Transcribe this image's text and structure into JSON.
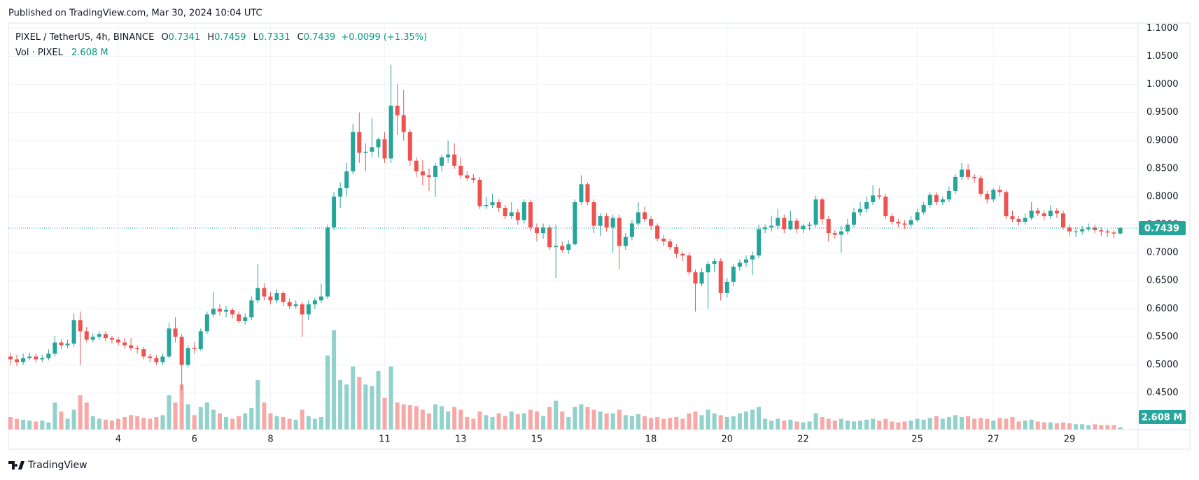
{
  "published": "Published on TradingView.com, Mar 30, 2024 10:04 UTC",
  "footer": "TradingView",
  "chart_data": {
    "type": "candlestick",
    "header": {
      "symbol": "PIXEL / TetherUS, 4h, BINANCE",
      "o": "O",
      "h": "H",
      "l": "L",
      "c": "C",
      "change": "+0.0099 (+1.35%)",
      "volume_title": "Vol · PIXEL"
    },
    "volume_label": "2.608 M",
    "up_color": "#26a69a",
    "down_color": "#ef5350",
    "grid": true,
    "ylim": [
      0.3847,
      1.1092
    ],
    "y2lim": [
      0,
      450
    ],
    "yticks": [
      {
        "value": 1.1,
        "label": "1.1000"
      },
      {
        "value": 1.05,
        "label": "1.0500"
      },
      {
        "value": 1.0,
        "label": "1.0000"
      },
      {
        "value": 0.95,
        "label": "0.9500"
      },
      {
        "value": 0.9,
        "label": "0.9000"
      },
      {
        "value": 0.85,
        "label": "0.8500"
      },
      {
        "value": 0.8,
        "label": "0.8000"
      },
      {
        "value": 0.75,
        "label": "0.7500"
      },
      {
        "value": 0.7,
        "label": "0.7000"
      },
      {
        "value": 0.65,
        "label": "0.6500"
      },
      {
        "value": 0.6,
        "label": "0.6000"
      },
      {
        "value": 0.55,
        "label": "0.5500"
      },
      {
        "value": 0.5,
        "label": "0.5000"
      },
      {
        "value": 0.45,
        "label": "0.4500"
      }
    ],
    "categories": [
      null,
      null,
      null,
      null,
      null,
      null,
      null,
      null,
      null,
      null,
      null,
      null,
      null,
      null,
      null,
      null,
      null,
      "4",
      null,
      null,
      null,
      null,
      null,
      null,
      null,
      null,
      null,
      null,
      null,
      "6",
      null,
      null,
      null,
      null,
      null,
      null,
      null,
      null,
      null,
      null,
      null,
      "8",
      null,
      null,
      null,
      null,
      null,
      null,
      null,
      null,
      null,
      null,
      null,
      null,
      null,
      null,
      null,
      null,
      null,
      "11",
      null,
      null,
      null,
      null,
      null,
      null,
      null,
      null,
      null,
      null,
      null,
      "13",
      null,
      null,
      null,
      null,
      null,
      null,
      null,
      null,
      null,
      null,
      null,
      "15",
      null,
      null,
      null,
      null,
      null,
      null,
      null,
      null,
      null,
      null,
      null,
      null,
      null,
      null,
      null,
      null,
      null,
      "18",
      null,
      null,
      null,
      null,
      null,
      null,
      null,
      null,
      null,
      null,
      null,
      "20",
      null,
      null,
      null,
      null,
      null,
      null,
      null,
      null,
      null,
      null,
      null,
      "22",
      null,
      null,
      null,
      null,
      null,
      null,
      null,
      null,
      null,
      null,
      null,
      null,
      null,
      null,
      null,
      null,
      null,
      "25",
      null,
      null,
      null,
      null,
      null,
      null,
      null,
      null,
      null,
      null,
      null,
      "27",
      null,
      null,
      null,
      null,
      null,
      null,
      null,
      null,
      null,
      null,
      null,
      "29",
      null,
      null,
      null,
      null,
      null,
      null,
      null,
      null
    ],
    "open": [
      0.515,
      0.51,
      0.505,
      0.512,
      0.515,
      0.51,
      0.512,
      0.52,
      0.54,
      0.535,
      0.538,
      0.58,
      0.56,
      0.545,
      0.55,
      0.555,
      0.548,
      0.545,
      0.54,
      0.535,
      0.53,
      0.528,
      0.515,
      0.512,
      0.505,
      0.515,
      0.565,
      0.55,
      0.5,
      0.53,
      0.528,
      0.56,
      0.59,
      0.6,
      0.595,
      0.598,
      0.59,
      0.578,
      0.585,
      0.615,
      0.637,
      0.622,
      0.615,
      0.628,
      0.612,
      0.605,
      0.608,
      0.59,
      0.608,
      0.615,
      0.622,
      0.745,
      0.8,
      0.815,
      0.845,
      0.915,
      0.878,
      0.88,
      0.888,
      0.902,
      0.868,
      0.962,
      0.945,
      0.915,
      0.864,
      0.845,
      0.838,
      0.835,
      0.855,
      0.87,
      0.875,
      0.855,
      0.838,
      0.833,
      0.83,
      0.783,
      0.785,
      0.79,
      0.78,
      0.765,
      0.772,
      0.758,
      0.79,
      0.745,
      0.735,
      0.745,
      0.71,
      0.712,
      0.705,
      0.715,
      0.79,
      0.822,
      0.79,
      0.748,
      0.765,
      0.745,
      0.762,
      0.712,
      0.728,
      0.752,
      0.772,
      0.76,
      0.748,
      0.725,
      0.72,
      0.71,
      0.698,
      0.695,
      0.665,
      0.645,
      0.665,
      0.68,
      0.685,
      0.628,
      0.648,
      0.675,
      0.682,
      0.688,
      0.695,
      0.742,
      0.745,
      0.748,
      0.762,
      0.742,
      0.757,
      0.742,
      0.748,
      0.75,
      0.795,
      0.76,
      0.735,
      0.732,
      0.738,
      0.75,
      0.772,
      0.778,
      0.79,
      0.802,
      0.8,
      0.765,
      0.755,
      0.752,
      0.75,
      0.758,
      0.772,
      0.785,
      0.803,
      0.79,
      0.795,
      0.81,
      0.835,
      0.848,
      0.835,
      0.833,
      0.805,
      0.795,
      0.812,
      0.808,
      0.765,
      0.76,
      0.755,
      0.762,
      0.775,
      0.77,
      0.765,
      0.775,
      0.77,
      0.745,
      0.738,
      0.738,
      0.742,
      0.745,
      0.74,
      0.738,
      0.736,
      0.7341
    ],
    "high": [
      0.522,
      0.518,
      0.52,
      0.522,
      0.52,
      0.518,
      0.528,
      0.552,
      0.545,
      0.545,
      0.592,
      0.595,
      0.568,
      0.556,
      0.56,
      0.56,
      0.552,
      0.55,
      0.548,
      0.548,
      0.535,
      0.532,
      0.52,
      0.518,
      0.52,
      0.575,
      0.585,
      0.555,
      0.535,
      0.54,
      0.565,
      0.595,
      0.63,
      0.608,
      0.605,
      0.602,
      0.595,
      0.592,
      0.622,
      0.68,
      0.645,
      0.63,
      0.635,
      0.632,
      0.618,
      0.615,
      0.612,
      0.615,
      0.62,
      0.645,
      0.75,
      0.808,
      0.825,
      0.86,
      0.93,
      0.95,
      0.895,
      0.94,
      0.905,
      0.915,
      1.035,
      1.0,
      0.99,
      0.92,
      0.87,
      0.865,
      0.85,
      0.86,
      0.875,
      0.9,
      0.895,
      0.87,
      0.845,
      0.84,
      0.835,
      0.8,
      0.805,
      0.795,
      0.785,
      0.79,
      0.778,
      0.795,
      0.795,
      0.752,
      0.752,
      0.75,
      0.75,
      0.72,
      0.722,
      0.795,
      0.838,
      0.825,
      0.795,
      0.77,
      0.77,
      0.768,
      0.768,
      0.735,
      0.758,
      0.79,
      0.782,
      0.765,
      0.752,
      0.732,
      0.725,
      0.715,
      0.702,
      0.7,
      0.67,
      0.672,
      0.685,
      0.69,
      0.69,
      0.655,
      0.68,
      0.688,
      0.695,
      0.702,
      0.75,
      0.75,
      0.765,
      0.778,
      0.768,
      0.775,
      0.762,
      0.752,
      0.755,
      0.802,
      0.798,
      0.765,
      0.74,
      0.748,
      0.76,
      0.78,
      0.79,
      0.8,
      0.82,
      0.815,
      0.805,
      0.77,
      0.76,
      0.758,
      0.765,
      0.778,
      0.79,
      0.808,
      0.808,
      0.8,
      0.818,
      0.84,
      0.86,
      0.858,
      0.84,
      0.838,
      0.81,
      0.815,
      0.82,
      0.812,
      0.775,
      0.765,
      0.77,
      0.79,
      0.78,
      0.775,
      0.785,
      0.78,
      0.775,
      0.75,
      0.745,
      0.748,
      0.752,
      0.75,
      0.745,
      0.742,
      0.74,
      0.7459
    ],
    "low": [
      0.5,
      0.498,
      0.5,
      0.508,
      0.505,
      0.505,
      0.508,
      0.515,
      0.528,
      0.53,
      0.532,
      0.5,
      0.54,
      0.54,
      0.545,
      0.542,
      0.538,
      0.535,
      0.53,
      0.525,
      0.52,
      0.51,
      0.505,
      0.5,
      0.5,
      0.512,
      0.54,
      0.455,
      0.495,
      0.52,
      0.525,
      0.555,
      0.585,
      0.588,
      0.585,
      0.582,
      0.575,
      0.572,
      0.58,
      0.61,
      0.615,
      0.608,
      0.61,
      0.605,
      0.6,
      0.6,
      0.55,
      0.58,
      0.6,
      0.61,
      0.618,
      0.74,
      0.78,
      0.8,
      0.84,
      0.86,
      0.845,
      0.87,
      0.87,
      0.86,
      0.86,
      0.91,
      0.9,
      0.855,
      0.835,
      0.82,
      0.81,
      0.8,
      0.845,
      0.86,
      0.85,
      0.832,
      0.828,
      0.825,
      0.778,
      0.778,
      0.78,
      0.772,
      0.76,
      0.76,
      0.75,
      0.752,
      0.738,
      0.72,
      0.725,
      0.705,
      0.655,
      0.7,
      0.698,
      0.712,
      0.785,
      0.785,
      0.735,
      0.73,
      0.738,
      0.7,
      0.67,
      0.705,
      0.722,
      0.748,
      0.755,
      0.74,
      0.72,
      0.712,
      0.705,
      0.69,
      0.685,
      0.66,
      0.595,
      0.64,
      0.6,
      0.665,
      0.615,
      0.62,
      0.64,
      0.668,
      0.675,
      0.66,
      0.69,
      0.735,
      0.738,
      0.742,
      0.735,
      0.74,
      0.735,
      0.735,
      0.74,
      0.745,
      0.75,
      0.72,
      0.725,
      0.7,
      0.732,
      0.745,
      0.765,
      0.772,
      0.785,
      0.795,
      0.76,
      0.75,
      0.745,
      0.742,
      0.745,
      0.755,
      0.768,
      0.78,
      0.785,
      0.785,
      0.79,
      0.805,
      0.83,
      0.83,
      0.825,
      0.8,
      0.788,
      0.79,
      0.8,
      0.76,
      0.755,
      0.748,
      0.75,
      0.758,
      0.765,
      0.758,
      0.76,
      0.762,
      0.74,
      0.73,
      0.728,
      0.732,
      0.738,
      0.735,
      0.73,
      0.728,
      0.726,
      0.7331
    ],
    "close": [
      0.51,
      0.505,
      0.512,
      0.515,
      0.51,
      0.512,
      0.52,
      0.54,
      0.535,
      0.538,
      0.58,
      0.56,
      0.545,
      0.55,
      0.555,
      0.548,
      0.545,
      0.54,
      0.535,
      0.53,
      0.528,
      0.515,
      0.512,
      0.505,
      0.515,
      0.565,
      0.55,
      0.5,
      0.53,
      0.528,
      0.56,
      0.59,
      0.6,
      0.595,
      0.598,
      0.59,
      0.578,
      0.585,
      0.615,
      0.637,
      0.622,
      0.615,
      0.628,
      0.612,
      0.605,
      0.608,
      0.59,
      0.608,
      0.615,
      0.622,
      0.745,
      0.8,
      0.815,
      0.845,
      0.915,
      0.878,
      0.88,
      0.888,
      0.902,
      0.868,
      0.962,
      0.945,
      0.915,
      0.864,
      0.845,
      0.838,
      0.835,
      0.855,
      0.87,
      0.875,
      0.855,
      0.838,
      0.833,
      0.83,
      0.783,
      0.785,
      0.79,
      0.78,
      0.765,
      0.772,
      0.758,
      0.79,
      0.745,
      0.735,
      0.745,
      0.71,
      0.712,
      0.705,
      0.715,
      0.79,
      0.822,
      0.79,
      0.748,
      0.765,
      0.745,
      0.762,
      0.712,
      0.728,
      0.752,
      0.772,
      0.76,
      0.748,
      0.725,
      0.72,
      0.71,
      0.698,
      0.695,
      0.665,
      0.645,
      0.665,
      0.68,
      0.685,
      0.628,
      0.648,
      0.675,
      0.682,
      0.688,
      0.695,
      0.742,
      0.745,
      0.748,
      0.762,
      0.742,
      0.757,
      0.742,
      0.748,
      0.75,
      0.795,
      0.76,
      0.735,
      0.732,
      0.738,
      0.75,
      0.772,
      0.778,
      0.79,
      0.802,
      0.8,
      0.765,
      0.755,
      0.752,
      0.75,
      0.758,
      0.772,
      0.785,
      0.803,
      0.79,
      0.795,
      0.81,
      0.835,
      0.848,
      0.835,
      0.833,
      0.805,
      0.795,
      0.812,
      0.808,
      0.765,
      0.76,
      0.755,
      0.762,
      0.775,
      0.77,
      0.765,
      0.775,
      0.77,
      0.745,
      0.738,
      0.738,
      0.742,
      0.745,
      0.74,
      0.738,
      0.736,
      0.7341,
      0.7439
    ],
    "volume": [
      14,
      12,
      11,
      10,
      9,
      10,
      8,
      30,
      20,
      12,
      22,
      38,
      30,
      15,
      12,
      11,
      10,
      12,
      14,
      16,
      15,
      13,
      12,
      14,
      16,
      38,
      30,
      50,
      28,
      16,
      25,
      30,
      22,
      18,
      14,
      12,
      15,
      18,
      24,
      55,
      30,
      18,
      15,
      14,
      12,
      11,
      22,
      15,
      12,
      14,
      82,
      110,
      55,
      50,
      70,
      58,
      50,
      48,
      65,
      35,
      70,
      30,
      28,
      27,
      26,
      22,
      18,
      28,
      26,
      20,
      25,
      22,
      14,
      12,
      20,
      16,
      14,
      18,
      15,
      20,
      17,
      18,
      22,
      20,
      15,
      25,
      32,
      20,
      14,
      25,
      28,
      25,
      22,
      20,
      18,
      18,
      22,
      16,
      15,
      17,
      15,
      13,
      14,
      12,
      13,
      14,
      12,
      18,
      20,
      16,
      22,
      18,
      16,
      14,
      15,
      18,
      20,
      22,
      25,
      12,
      10,
      12,
      10,
      11,
      9,
      8,
      9,
      18,
      14,
      12,
      10,
      12,
      10,
      9,
      10,
      11,
      12,
      10,
      12,
      9,
      8,
      9,
      10,
      12,
      11,
      13,
      15,
      12,
      14,
      16,
      14,
      15,
      12,
      13,
      12,
      10,
      13,
      12,
      14,
      9,
      10,
      11,
      9,
      8,
      8,
      7,
      8,
      7,
      6,
      6,
      5,
      6,
      5,
      5,
      5,
      2.608
    ]
  }
}
